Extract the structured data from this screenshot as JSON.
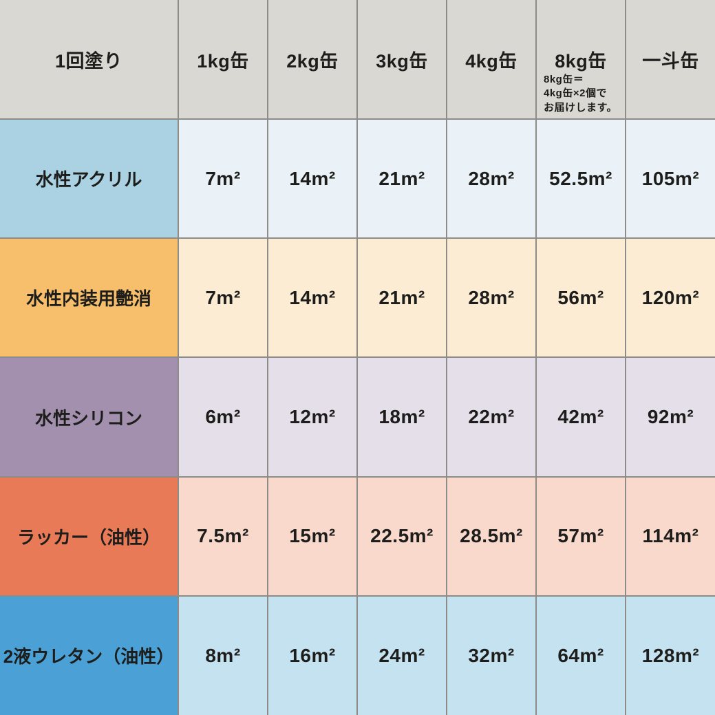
{
  "table": {
    "header": {
      "first_col": "1回塗り",
      "columns": [
        "1kg缶",
        "2kg缶",
        "3kg缶",
        "4kg缶",
        "8kg缶",
        "一斗缶"
      ],
      "note_lines": [
        "8kg缶＝",
        "4kg缶×2個で",
        "お届けします。"
      ]
    },
    "rows": [
      {
        "label": "水性アクリル",
        "label_bg": "#aad2e2",
        "cell_bg": "#eaf2f7",
        "values": [
          "7m²",
          "14m²",
          "21m²",
          "28m²",
          "52.5m²",
          "105m²"
        ]
      },
      {
        "label": "水性内装用艶消",
        "label_bg": "#f7bf6b",
        "cell_bg": "#fdecd4",
        "values": [
          "7m²",
          "14m²",
          "21m²",
          "28m²",
          "56m²",
          "120m²"
        ]
      },
      {
        "label": "水性シリコン",
        "label_bg": "#a38fae",
        "cell_bg": "#e5dfea",
        "values": [
          "6m²",
          "12m²",
          "18m²",
          "22m²",
          "42m²",
          "92m²"
        ]
      },
      {
        "label": "ラッカー（油性）",
        "label_bg": "#e87a58",
        "cell_bg": "#f9d9cb",
        "values": [
          "7.5m²",
          "15m²",
          "22.5m²",
          "28.5m²",
          "57m²",
          "114m²"
        ]
      },
      {
        "label": "2液ウレタン（油性）",
        "label_bg": "#4ba1d6",
        "cell_bg": "#c5e2f0",
        "values": [
          "8m²",
          "16m²",
          "24m²",
          "32m²",
          "64m²",
          "128m²"
        ]
      }
    ],
    "colors": {
      "header_bg": "#dad8d3",
      "grid": "#8e8c89",
      "text": "#1d1d1b"
    }
  },
  "chart_data": {
    "type": "table",
    "title": "1回塗り",
    "columns": [
      "1kg缶",
      "2kg缶",
      "3kg缶",
      "4kg缶",
      "8kg缶",
      "一斗缶"
    ],
    "note": "8kg缶＝4kg缶×2個でお届けします。",
    "unit": "m²",
    "series": [
      {
        "name": "水性アクリル",
        "values": [
          7,
          14,
          21,
          28,
          52.5,
          105
        ]
      },
      {
        "name": "水性内装用艶消",
        "values": [
          7,
          14,
          21,
          28,
          56,
          120
        ]
      },
      {
        "name": "水性シリコン",
        "values": [
          6,
          12,
          18,
          22,
          42,
          92
        ]
      },
      {
        "name": "ラッカー（油性）",
        "values": [
          7.5,
          15,
          22.5,
          28.5,
          57,
          114
        ]
      },
      {
        "name": "2液ウレタン（油性）",
        "values": [
          8,
          16,
          24,
          32,
          64,
          128
        ]
      }
    ]
  }
}
